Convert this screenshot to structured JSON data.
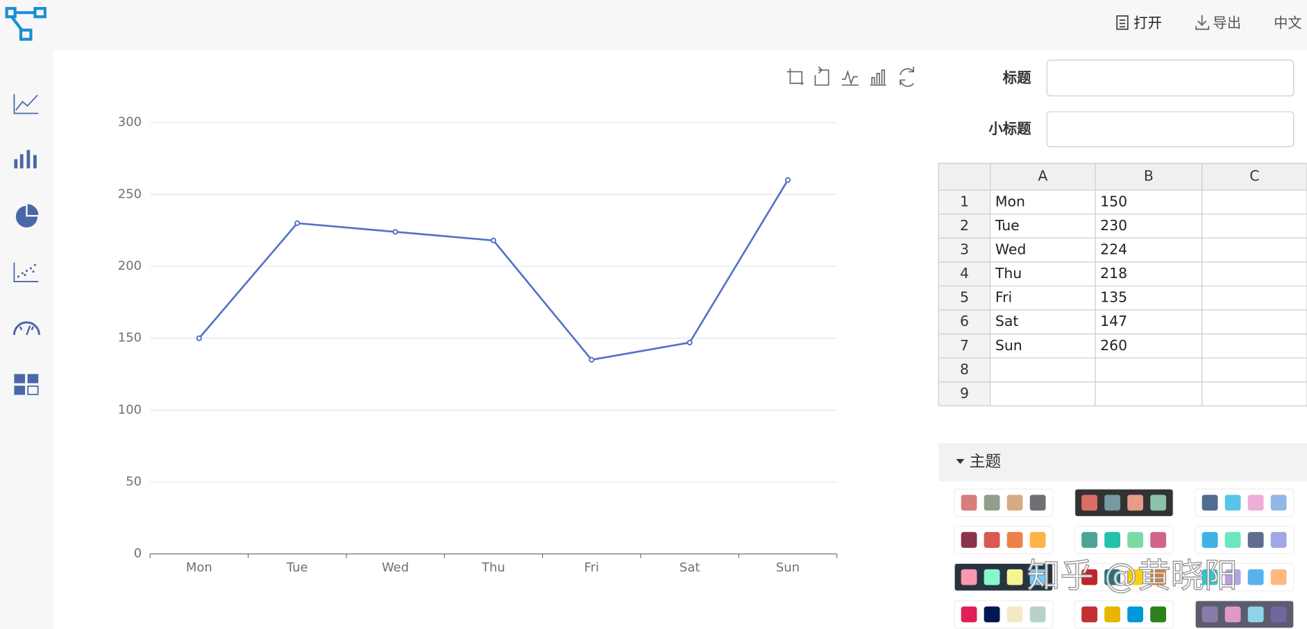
{
  "header": {
    "menu": [
      "打开",
      "导出",
      "中文"
    ]
  },
  "chart_data": {
    "type": "line",
    "categories": [
      "Mon",
      "Tue",
      "Wed",
      "Thu",
      "Fri",
      "Sat",
      "Sun"
    ],
    "values": [
      150,
      230,
      224,
      218,
      135,
      147,
      260
    ],
    "color": "#5470c6",
    "ylim": [
      0,
      300
    ],
    "yticks": [
      0,
      50,
      100,
      150,
      200,
      250,
      300
    ],
    "grid": true
  },
  "form": {
    "title_label": "标题",
    "subtitle_label": "小标题"
  },
  "table": {
    "columns": [
      "A",
      "B",
      "C"
    ],
    "row_numbers": [
      1,
      2,
      3,
      4,
      5,
      6,
      7,
      8,
      9
    ],
    "rows": [
      [
        "Mon",
        150
      ],
      [
        "Tue",
        230
      ],
      [
        "Wed",
        224
      ],
      [
        "Thu",
        218
      ],
      [
        "Fri",
        135
      ],
      [
        "Sat",
        147
      ],
      [
        "Sun",
        260
      ]
    ]
  },
  "themes": {
    "title": "主题",
    "items": [
      {
        "background": "#ffffff",
        "colors": [
          "#d87c7c",
          "#919e8b",
          "#d7ab82",
          "#6e7074"
        ]
      },
      {
        "background": "#333333",
        "colors": [
          "#dd6b66",
          "#759aa0",
          "#e69d87",
          "#8dc1a9"
        ]
      },
      {
        "background": "#ffffff",
        "colors": [
          "#516b91",
          "#59c4e6",
          "#edafda",
          "#93b7e3"
        ]
      },
      {
        "background": "#ffffff",
        "colors": [
          "#893448",
          "#d95850",
          "#eb8146",
          "#ffb248"
        ]
      },
      {
        "background": "#ffffff",
        "colors": [
          "#4ea397",
          "#22c3aa",
          "#7bd9a5",
          "#d0648a"
        ]
      },
      {
        "background": "#ffffff",
        "colors": [
          "#3fb1e3",
          "#6be6c1",
          "#626c91",
          "#a0a7e6"
        ]
      },
      {
        "background": "#293441",
        "colors": [
          "#fc97af",
          "#87f7cf",
          "#f7f494",
          "#72ccff"
        ]
      },
      {
        "background": "#ffffff",
        "colors": [
          "#c1232b",
          "#27727b",
          "#fcce10",
          "#e87c25"
        ]
      },
      {
        "background": "#ffffff",
        "colors": [
          "#2ec7c9",
          "#b6a2de",
          "#5ab1ef",
          "#ffb980"
        ]
      },
      {
        "background": "#ffffff",
        "colors": [
          "#e01f54",
          "#001852",
          "#f5e8c8",
          "#b8d2c7"
        ]
      },
      {
        "background": "#ffffff",
        "colors": [
          "#c12e34",
          "#e6b600",
          "#0098d9",
          "#2b821d"
        ]
      },
      {
        "background": "#5b5c6e",
        "colors": [
          "#8a7ca8",
          "#e098c7",
          "#8fd3e8",
          "#71669e"
        ]
      }
    ]
  },
  "watermark": "知乎 @黄晓阳"
}
